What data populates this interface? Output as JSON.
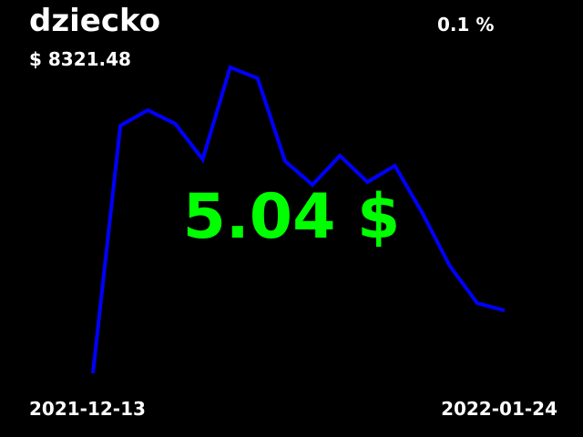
{
  "header": {
    "title": "dziecko",
    "price": "$ 8321.48",
    "change": "0.1 %"
  },
  "center_value": "5.04 $",
  "chart_data": {
    "type": "line",
    "color": "#0000ff",
    "values": [
      0,
      272,
      289,
      274,
      235,
      336,
      324,
      233,
      207,
      239,
      210,
      228,
      176,
      118,
      77,
      69
    ],
    "ylim": [
      0,
      336
    ]
  },
  "footer": {
    "start_date": "2021-12-13",
    "end_date": "2022-01-24"
  }
}
